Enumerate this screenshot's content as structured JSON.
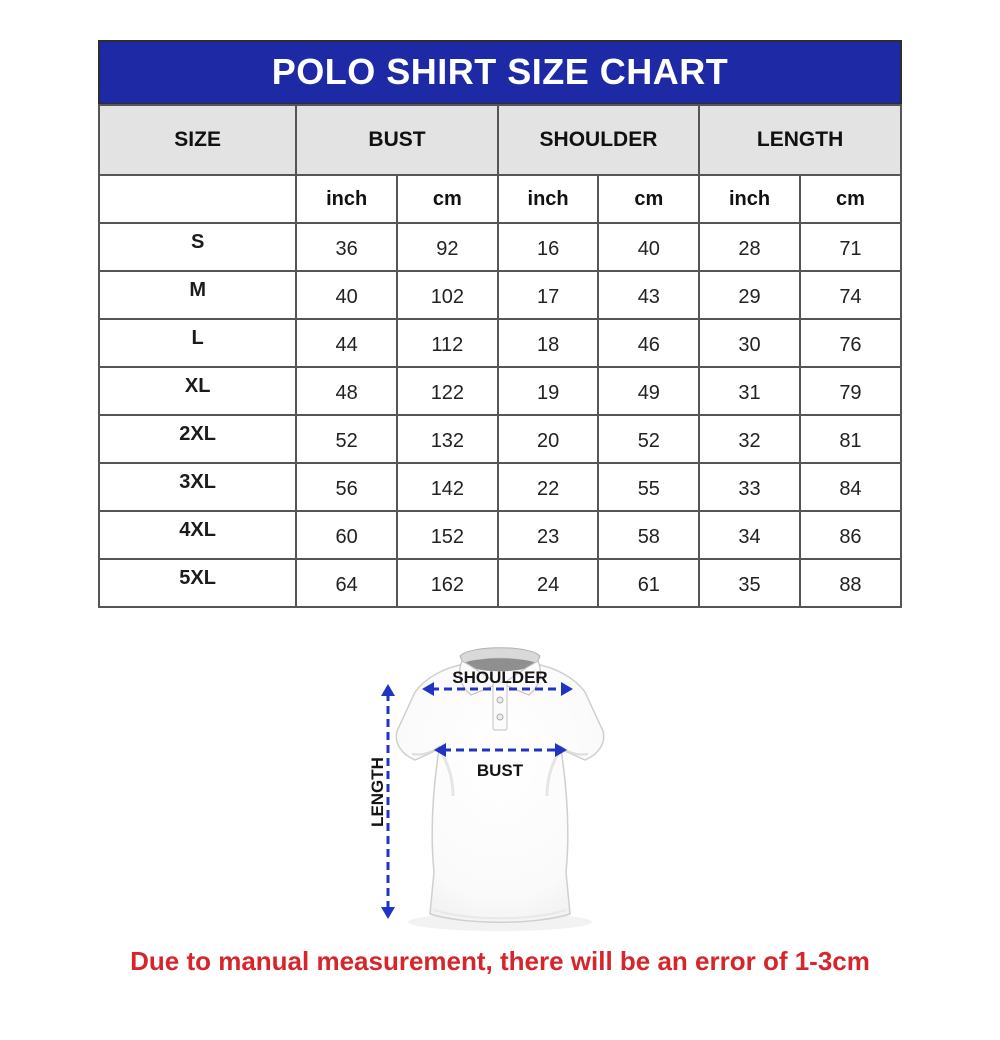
{
  "title": "POLO SHIRT SIZE CHART",
  "table": {
    "columns": [
      "SIZE",
      "BUST",
      "SHOULDER",
      "LENGTH"
    ],
    "unit_headers": [
      "inch",
      "cm",
      "inch",
      "cm",
      "inch",
      "cm"
    ],
    "rows": [
      {
        "size": "S",
        "values": [
          "36",
          "92",
          "16",
          "40",
          "28",
          "71"
        ]
      },
      {
        "size": "M",
        "values": [
          "40",
          "102",
          "17",
          "43",
          "29",
          "74"
        ]
      },
      {
        "size": "L",
        "values": [
          "44",
          "112",
          "18",
          "46",
          "30",
          "76"
        ]
      },
      {
        "size": "XL",
        "values": [
          "48",
          "122",
          "19",
          "49",
          "31",
          "79"
        ]
      },
      {
        "size": "2XL",
        "values": [
          "52",
          "132",
          "20",
          "52",
          "32",
          "81"
        ]
      },
      {
        "size": "3XL",
        "values": [
          "56",
          "142",
          "22",
          "55",
          "33",
          "84"
        ]
      },
      {
        "size": "4XL",
        "values": [
          "60",
          "152",
          "23",
          "58",
          "34",
          "86"
        ]
      },
      {
        "size": "5XL",
        "values": [
          "64",
          "162",
          "24",
          "61",
          "35",
          "88"
        ]
      }
    ]
  },
  "diagram": {
    "shoulder_label": "SHOULDER",
    "bust_label": "BUST",
    "length_label": "LENGTH"
  },
  "note": "Due to manual measurement, there will be an error of 1-3cm",
  "colors": {
    "title_bg": "#1e2aa5",
    "title_text": "#ffffff",
    "header_bg": "#e3e3e3",
    "table_border": "#555555",
    "arrow_blue": "#2033c4",
    "note_red": "#d6262b"
  }
}
